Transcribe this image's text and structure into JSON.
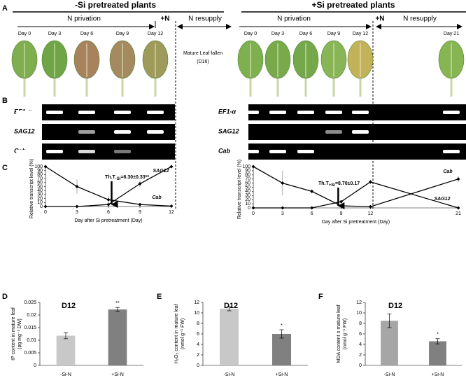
{
  "panel_labels": [
    "A",
    "B",
    "C",
    "D",
    "E",
    "F"
  ],
  "header": {
    "left": {
      "title": "-Si pretreated plants",
      "phase1": "N privation",
      "plus_n": "+N",
      "phase2": "N resupply",
      "days": [
        "Day 0",
        "Day 3",
        "Day 6",
        "Day 9",
        "Day 12"
      ],
      "note": [
        "Mature Leaf fallen",
        "(D16)"
      ]
    },
    "right": {
      "title": "+Si pretreated plants",
      "phase1": "N privation",
      "plus_n": "+N",
      "phase2": "N resupply",
      "days": [
        "Day 0",
        "Day 3",
        "Day 6",
        "Day 9",
        "Day 12",
        "Day 21"
      ]
    }
  },
  "gels": {
    "genes": [
      "EF1-α",
      "SAG12",
      "Cab"
    ]
  },
  "chart_data": [
    {
      "type": "line",
      "ylabel": "Relative transcript level (%)",
      "xlabel": "Day after Si pretreatment (Day)",
      "x": [
        0,
        3,
        6,
        9,
        12
      ],
      "xlim": [
        0,
        12
      ],
      "xticks": [
        0,
        3,
        6,
        9,
        12
      ],
      "ylim": [
        0,
        100
      ],
      "yticks": [
        0,
        10,
        20,
        30,
        40,
        50,
        60,
        70,
        80,
        90,
        100
      ],
      "series": [
        {
          "name": "SAG12",
          "color": "#000000",
          "values": [
            0,
            0,
            5,
            57,
            100
          ],
          "errors": [
            0,
            0,
            5,
            8,
            0
          ]
        },
        {
          "name": "Cab",
          "color": "#000000",
          "values": [
            100,
            50,
            17,
            5,
            1
          ],
          "errors": [
            0,
            18,
            9,
            3,
            0
          ]
        }
      ],
      "annotation": {
        "text": "Th.T",
        "subscript": "-Si",
        "suffix": "=6.30±0.33**",
        "value": 6.3
      }
    },
    {
      "type": "line",
      "ylabel": "Relative transcript level (%)",
      "xlabel": "Day after Si pretreatment (Day)",
      "x": [
        0,
        3,
        6,
        9,
        12,
        21
      ],
      "xlim": [
        0,
        21
      ],
      "xticks": [
        0,
        3,
        6,
        9,
        12,
        21
      ],
      "ylim": [
        0,
        100
      ],
      "yticks": [
        0,
        10,
        20,
        30,
        40,
        50,
        60,
        70,
        80,
        90,
        100
      ],
      "series": [
        {
          "name": "Cab",
          "color": "#000000",
          "values": [
            100,
            60,
            40,
            5,
            3,
            70
          ],
          "errors": [
            0,
            30,
            5,
            2,
            1,
            8
          ]
        },
        {
          "name": "SAG12",
          "color": "#000000",
          "values": [
            0,
            0,
            0,
            15,
            63,
            0
          ],
          "errors": [
            0,
            0,
            0,
            3,
            5,
            0
          ]
        }
      ],
      "annotation": {
        "text": "Th.T",
        "subscript": "+Si",
        "suffix": "=8.70±0.17",
        "value": 8.7
      }
    },
    {
      "type": "bar",
      "title": "D12",
      "ylabel": [
        "IP content in mature leaf",
        "(pg mg⁻¹ DW)"
      ],
      "categories": [
        "-Si-N",
        "+Si-N"
      ],
      "values": [
        0.0118,
        0.0222
      ],
      "errors": [
        0.0012,
        0.0008
      ],
      "colors": [
        "#c8c8c8",
        "#808080"
      ],
      "significance": [
        null,
        "**"
      ],
      "ylim": [
        0,
        0.025
      ],
      "yticks": [
        0,
        0.005,
        0.01,
        0.015,
        0.02,
        0.025
      ]
    },
    {
      "type": "bar",
      "title": "D12",
      "ylabel": [
        "H₂O₂ content in mature leaf",
        "(nmol g⁻¹ FW)"
      ],
      "categories": [
        "-Si-N",
        "+Si-N"
      ],
      "values": [
        10.8,
        6.0
      ],
      "errors": [
        0.4,
        0.8
      ],
      "colors": [
        "#c8c8c8",
        "#808080"
      ],
      "significance": [
        null,
        "*"
      ],
      "ylim": [
        0,
        12
      ],
      "yticks": [
        0,
        2,
        4,
        6,
        8,
        10,
        12
      ]
    },
    {
      "type": "bar",
      "title": "D12",
      "ylabel": [
        "MDA content n mature leaf",
        "(nmol g⁻¹ FW)"
      ],
      "categories": [
        "-Si-N",
        "+Si-N"
      ],
      "values": [
        8.5,
        4.6
      ],
      "errors": [
        1.3,
        0.5
      ],
      "colors": [
        "#a6a6a6",
        "#808080"
      ],
      "significance": [
        null,
        "*"
      ],
      "ylim": [
        0,
        12
      ],
      "yticks": [
        0,
        2,
        4,
        6,
        8,
        10,
        12
      ]
    }
  ]
}
